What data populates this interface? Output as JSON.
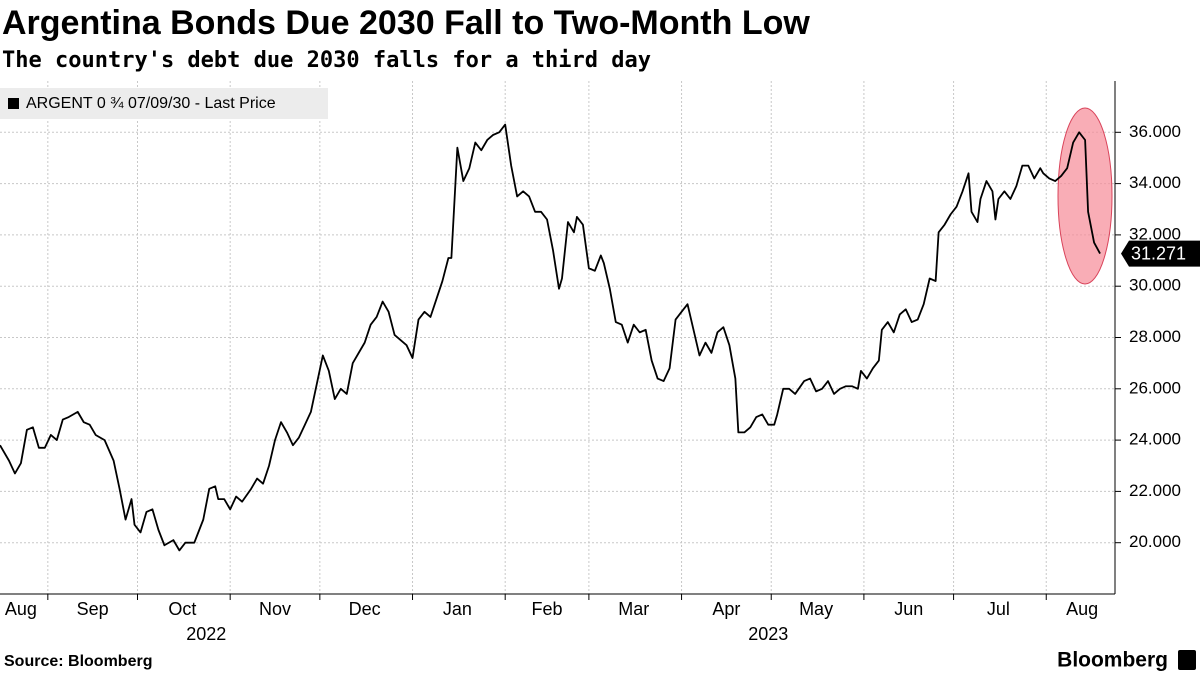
{
  "chart_data": {
    "type": "line",
    "title": "Argentina Bonds Due 2030 Fall to Two-Month Low",
    "subtitle": "The country's debt due 2030 falls for a third day",
    "source": "Source: Bloomberg",
    "brand": "Bloomberg",
    "x": [
      1,
      4,
      6,
      8,
      10,
      12,
      14,
      16,
      18,
      20,
      22,
      24,
      27,
      29,
      31,
      33,
      36,
      39,
      41,
      43,
      45,
      46,
      48,
      50,
      52,
      54,
      56,
      59,
      61,
      63,
      66,
      67,
      69,
      71,
      73,
      74,
      76,
      78,
      80,
      82,
      85,
      87,
      89,
      91,
      93,
      95,
      97,
      99,
      101,
      103,
      105,
      107,
      109,
      111,
      113,
      115,
      117,
      119,
      121,
      123,
      125,
      127,
      129,
      131,
      133,
      135,
      137,
      139,
      141,
      143,
      145,
      147,
      149,
      151,
      152,
      154,
      156,
      158,
      160,
      162,
      164,
      166,
      168,
      170,
      172,
      174,
      176,
      178,
      180,
      182,
      184,
      186,
      188,
      189,
      191,
      193,
      194,
      196,
      198,
      200,
      202,
      203,
      205,
      207,
      209,
      211,
      213,
      215,
      217,
      219,
      221,
      223,
      225,
      227,
      229,
      231,
      233,
      235,
      237,
      239,
      241,
      243,
      245,
      247,
      248,
      250,
      252,
      254,
      256,
      258,
      260,
      261,
      263,
      265,
      267,
      270,
      272,
      274,
      276,
      278,
      280,
      282,
      284,
      286,
      288,
      289,
      291,
      293,
      295,
      296,
      298,
      300,
      302,
      304,
      306,
      308,
      310,
      312,
      314,
      315,
      317,
      319,
      321,
      323,
      325,
      326,
      328,
      329,
      331,
      333,
      334,
      335,
      337,
      339,
      341,
      343,
      345,
      347,
      349,
      350,
      352,
      354,
      356,
      358,
      360,
      362,
      364,
      365,
      367,
      369
    ],
    "series": [
      {
        "name": "ARGENT 0 ¾ 07/09/30 - Last Price",
        "color": "#000000",
        "values": [
          23.8,
          23.2,
          22.7,
          23.1,
          24.4,
          24.5,
          23.7,
          23.7,
          24.2,
          24.0,
          24.8,
          24.9,
          25.1,
          24.7,
          24.6,
          24.2,
          24.0,
          23.2,
          22.1,
          20.9,
          21.7,
          20.7,
          20.4,
          21.2,
          21.3,
          20.5,
          19.9,
          20.1,
          19.7,
          20.0,
          20.0,
          20.3,
          20.9,
          22.1,
          22.2,
          21.7,
          21.7,
          21.3,
          21.8,
          21.6,
          22.1,
          22.5,
          22.3,
          23.0,
          24.0,
          24.7,
          24.3,
          23.8,
          24.1,
          24.6,
          25.1,
          26.2,
          27.3,
          26.7,
          25.6,
          26.0,
          25.8,
          27.0,
          27.4,
          27.8,
          28.5,
          28.8,
          29.4,
          29.0,
          28.1,
          27.9,
          27.7,
          27.2,
          28.7,
          29.0,
          28.8,
          29.5,
          30.2,
          31.1,
          31.1,
          35.4,
          34.1,
          34.6,
          35.6,
          35.3,
          35.7,
          35.9,
          36.0,
          36.3,
          34.7,
          33.5,
          33.7,
          33.5,
          32.9,
          32.9,
          32.6,
          31.4,
          29.9,
          30.3,
          32.5,
          32.1,
          32.7,
          32.4,
          30.7,
          30.6,
          31.2,
          30.9,
          29.9,
          28.6,
          28.5,
          27.8,
          28.5,
          28.2,
          28.3,
          27.1,
          26.4,
          26.3,
          26.8,
          28.7,
          29.0,
          29.3,
          28.3,
          27.3,
          27.8,
          27.4,
          28.2,
          28.4,
          27.7,
          26.4,
          24.3,
          24.3,
          24.5,
          24.9,
          25.0,
          24.6,
          24.6,
          25.0,
          26.0,
          26.0,
          25.8,
          26.3,
          26.4,
          25.9,
          26.0,
          26.3,
          25.8,
          26.0,
          26.1,
          26.1,
          26.0,
          26.7,
          26.4,
          26.8,
          27.1,
          28.3,
          28.6,
          28.2,
          28.9,
          29.1,
          28.6,
          28.7,
          29.3,
          30.3,
          30.2,
          32.1,
          32.4,
          32.8,
          33.1,
          33.7,
          34.4,
          32.9,
          32.5,
          33.4,
          34.1,
          33.7,
          32.6,
          33.4,
          33.7,
          33.4,
          33.9,
          34.7,
          34.7,
          34.2,
          34.6,
          34.4,
          34.2,
          34.1,
          34.3,
          34.6,
          35.6,
          36.0,
          35.7,
          32.9,
          31.7,
          31.271
        ]
      }
    ],
    "xlim": [
      1,
      374
    ],
    "xticks": [
      {
        "value": 8,
        "label": "Aug"
      },
      {
        "value": 32,
        "label": "Sep"
      },
      {
        "value": 62,
        "label": "Oct"
      },
      {
        "value": 93,
        "label": "Nov"
      },
      {
        "value": 123,
        "label": "Dec"
      },
      {
        "value": 154,
        "label": "Jan"
      },
      {
        "value": 184,
        "label": "Feb"
      },
      {
        "value": 213,
        "label": "Mar"
      },
      {
        "value": 244,
        "label": "Apr"
      },
      {
        "value": 274,
        "label": "May"
      },
      {
        "value": 305,
        "label": "Jun"
      },
      {
        "value": 335,
        "label": "Jul"
      },
      {
        "value": 363,
        "label": "Aug"
      }
    ],
    "xgrid": [
      17,
      47,
      78,
      108,
      139,
      170,
      198,
      229,
      259,
      290,
      320,
      351
    ],
    "year_labels": [
      {
        "value": 70,
        "label": "2022"
      },
      {
        "value": 258,
        "label": "2023"
      }
    ],
    "ylim": [
      18,
      38
    ],
    "yticks": [
      {
        "value": 20,
        "label": "20.000"
      },
      {
        "value": 22,
        "label": "22.000"
      },
      {
        "value": 24,
        "label": "24.000"
      },
      {
        "value": 26,
        "label": "26.000"
      },
      {
        "value": 28,
        "label": "28.000"
      },
      {
        "value": 30,
        "label": "30.000"
      },
      {
        "value": 32,
        "label": "32.000"
      },
      {
        "value": 34,
        "label": "34.000"
      },
      {
        "value": 36,
        "label": "36.000"
      }
    ],
    "grid": true
  }
}
